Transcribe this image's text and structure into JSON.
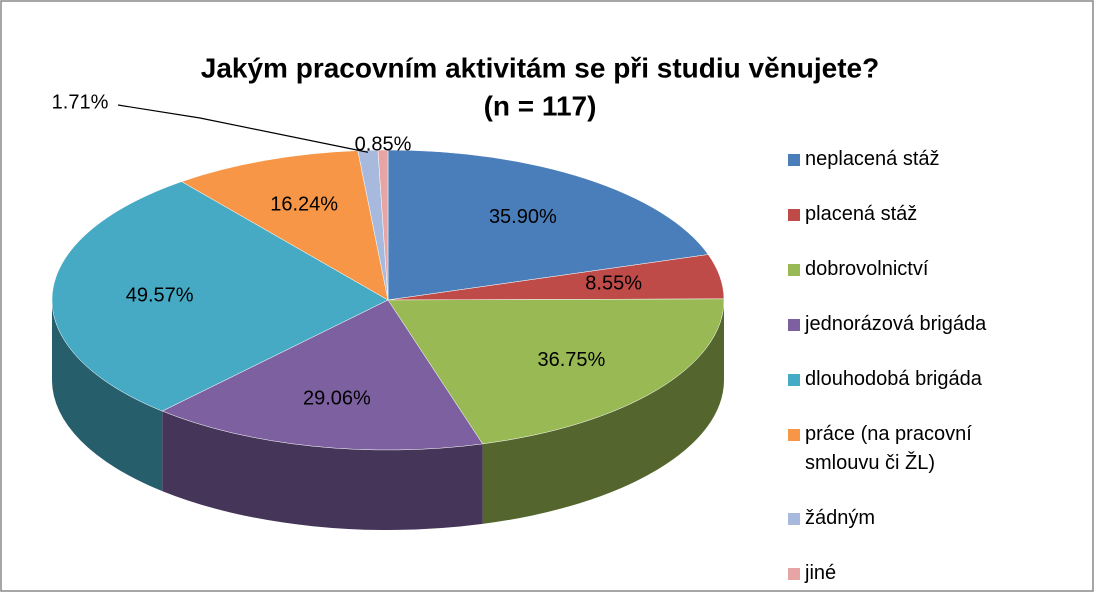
{
  "chart_data": {
    "type": "pie",
    "title": "Jakým pracovním aktivitám se při studiu věnujete?",
    "subtitle": "(n = 117)",
    "categories": [
      "neplacená stáž",
      "placená stáž",
      "dobrovolnictví",
      "jednorázová brigáda",
      "dlouhodobá brigáda",
      "práce (na pracovní smlouvu či ŽL)",
      "žádným",
      "jiné"
    ],
    "values": [
      35.9,
      8.55,
      36.75,
      29.06,
      49.57,
      16.24,
      1.71,
      0.85
    ],
    "value_labels": [
      "35.90%",
      "8.55%",
      "36.75%",
      "29.06%",
      "49.57%",
      "16.24%",
      "1.71%",
      "0.85%"
    ],
    "colors": [
      "#4a7ebb",
      "#be4b48",
      "#98b954",
      "#7d60a0",
      "#46aac5",
      "#f79646",
      "#a7b9dc",
      "#e6a5a4"
    ],
    "legend": "right"
  }
}
